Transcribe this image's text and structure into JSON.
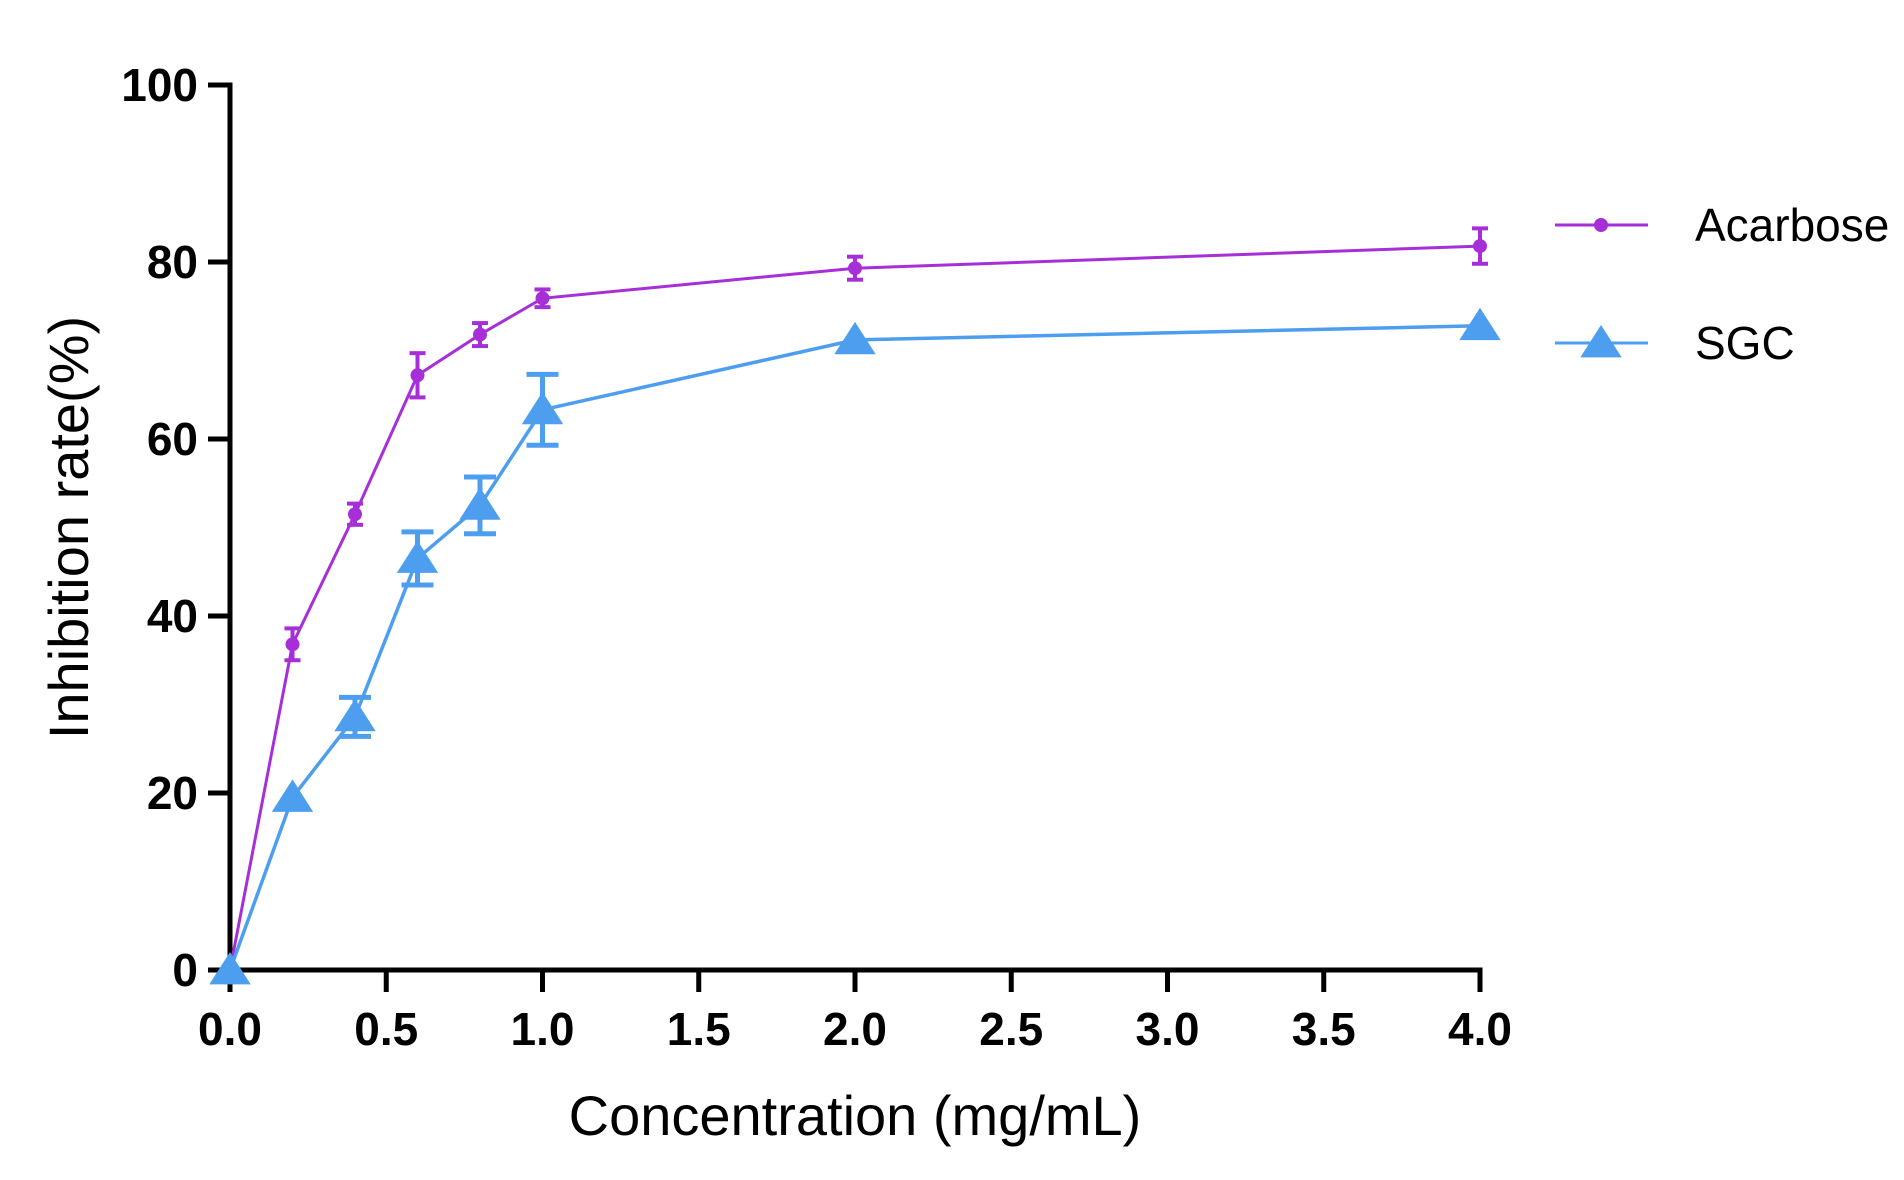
{
  "chart_data": {
    "type": "line",
    "title": "",
    "xlabel": "Concentration (mg/mL)",
    "ylabel": "Inhibition rate(%)",
    "xlim": [
      0,
      4
    ],
    "ylim": [
      0,
      100
    ],
    "xticks": [
      0,
      0.5,
      1,
      1.5,
      2,
      2.5,
      3,
      3.5,
      4
    ],
    "xtick_labels": [
      "0.0",
      "0.5",
      "1.0",
      "1.5",
      "2.0",
      "2.5",
      "3.0",
      "3.5",
      "4.0"
    ],
    "yticks": [
      0,
      20,
      40,
      60,
      80,
      100
    ],
    "ytick_labels": [
      "0",
      "20",
      "40",
      "60",
      "80",
      "100"
    ],
    "grid": false,
    "legend_position": "right",
    "series": [
      {
        "name": "Acarbose",
        "color": "#a62fd8",
        "marker": "circle",
        "x": [
          0,
          0.2,
          0.4,
          0.6,
          0.8,
          1.0,
          2.0,
          4.0
        ],
        "y": [
          0,
          36.8,
          51.5,
          67.2,
          71.8,
          75.9,
          79.3,
          81.8
        ],
        "err": [
          0,
          1.8,
          1.2,
          2.5,
          1.3,
          1.0,
          1.3,
          2.0
        ]
      },
      {
        "name": "SGC",
        "color": "#4d9eef",
        "marker": "triangle",
        "x": [
          0,
          0.2,
          0.4,
          0.6,
          0.8,
          1.0,
          2.0,
          4.0
        ],
        "y": [
          0,
          19.5,
          28.6,
          46.5,
          52.5,
          63.3,
          71.2,
          72.8
        ],
        "err": [
          0,
          0.5,
          2.2,
          3.0,
          3.2,
          4.0,
          0.5,
          0.5
        ]
      }
    ]
  }
}
